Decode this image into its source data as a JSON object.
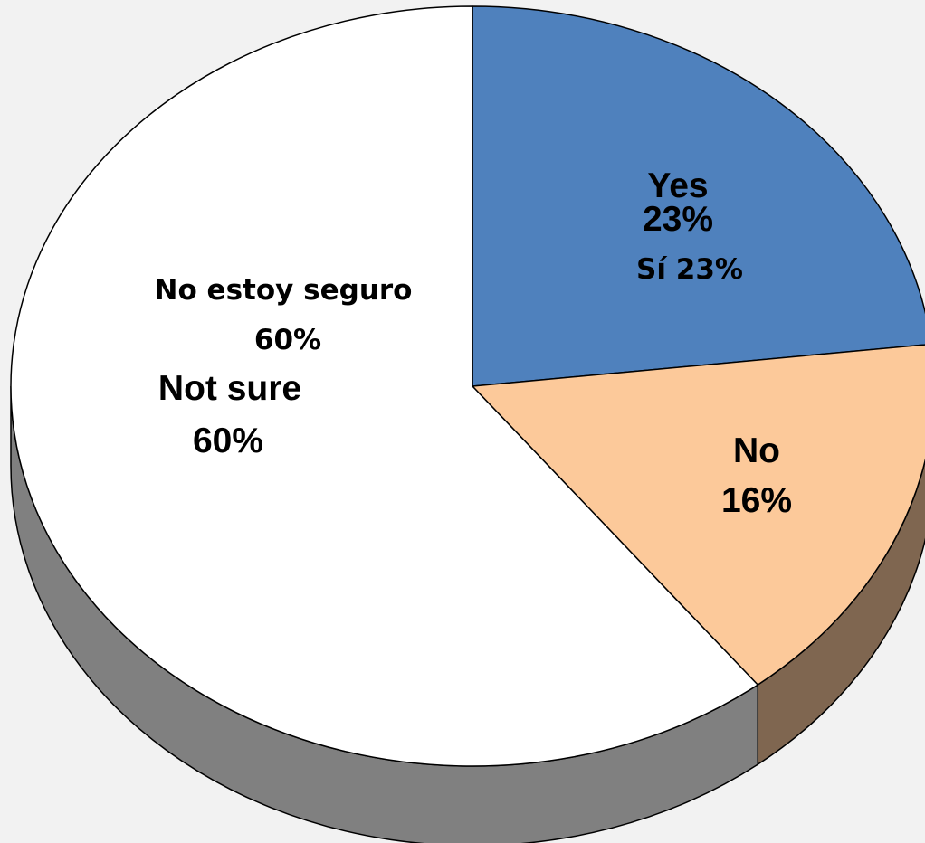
{
  "chart_data": {
    "type": "pie",
    "style": "3d",
    "start": "12 o'clock, clockwise",
    "slices": [
      {
        "key": "yes",
        "value": 23,
        "labels": [
          "Yes",
          "23%",
          "Sí  23%"
        ],
        "color": "#4f81bd",
        "side_color": "#3b5f8e"
      },
      {
        "key": "no",
        "value": 16,
        "labels": [
          "No",
          "16%"
        ],
        "color": "#fcc99a",
        "side_color": "#7f6650"
      },
      {
        "key": "not_sure",
        "value": 60,
        "labels": [
          "No estoy seguro",
          "60%",
          "Not sure",
          "60%"
        ],
        "color": "#ffffff",
        "side_color": "#808080"
      }
    ]
  }
}
